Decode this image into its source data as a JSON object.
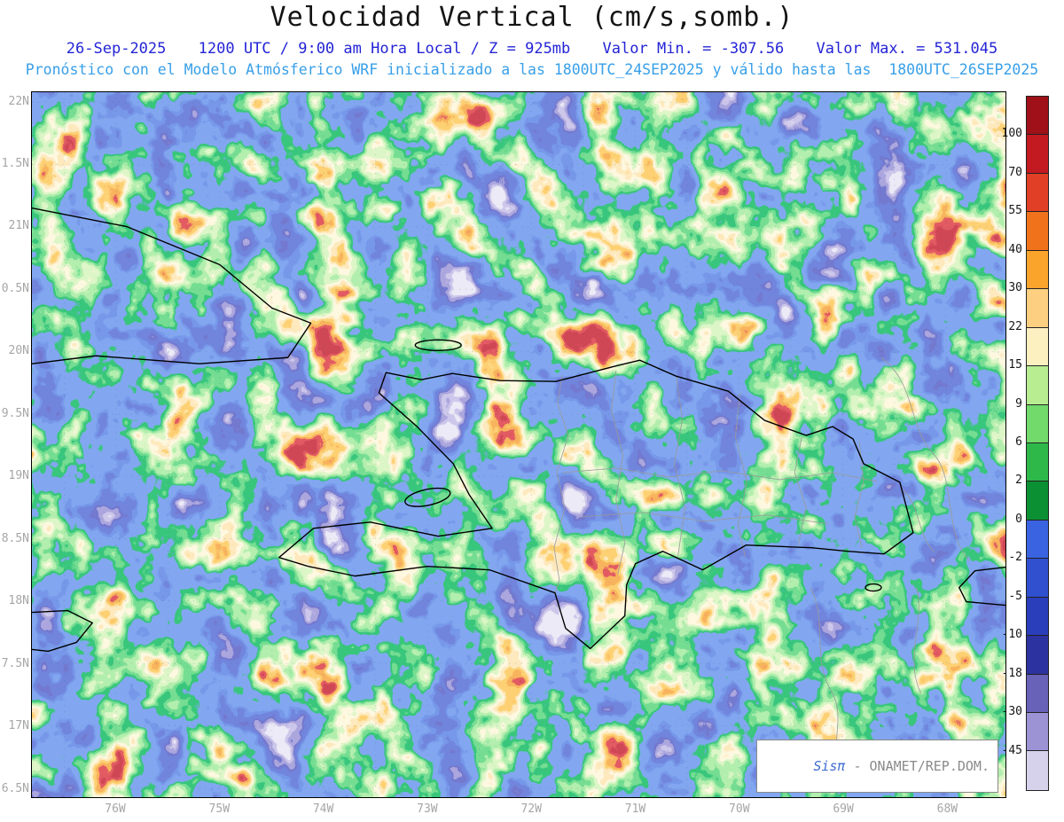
{
  "title": "Velocidad Vertical (cm/s,somb.)",
  "header": {
    "date": "26-Sep-2025",
    "time_level": "1200 UTC / 9:00 am Hora Local / Z = 925mb",
    "valor_min": "Valor Min. = -307.56",
    "valor_max": "Valor Max. = 531.045",
    "forecast_line": "Pronóstico con el Modelo Atmósferico WRF inicializado a las 1800UTC_24SEP2025 y válido hasta las  1800UTC_26SEP2025"
  },
  "map": {
    "y_axis_labels": [
      "22N",
      "1.5N",
      "21N",
      "0.5N",
      "20N",
      "9.5N",
      "19N",
      "8.5N",
      "18N",
      "7.5N",
      "17N",
      "6.5N"
    ],
    "x_axis_labels": [
      "76W",
      "75W",
      "74W",
      "73W",
      "72W",
      "71W",
      "70W",
      "69W",
      "68W"
    ]
  },
  "colorbar": {
    "labels": [
      "100",
      "70",
      "55",
      "40",
      "30",
      "22",
      "15",
      "9",
      "6",
      "2",
      "0",
      "-2",
      "-5",
      "-10",
      "-18",
      "-30",
      "-45"
    ],
    "colors_top_to_bottom": [
      "#9f1018",
      "#c21a20",
      "#e14026",
      "#f0731c",
      "#fba42c",
      "#fccf81",
      "#fdf0c0",
      "#b8ed92",
      "#72d96b",
      "#2eb84a",
      "#0b9033",
      "#3963e0",
      "#3050d0",
      "#2a3dba",
      "#2c329f",
      "#6862b8",
      "#9c93d4",
      "#d7d2ec"
    ]
  },
  "watermark": {
    "brand": "Sisπ",
    "org": " - ONAMET/REP.DOM."
  }
}
